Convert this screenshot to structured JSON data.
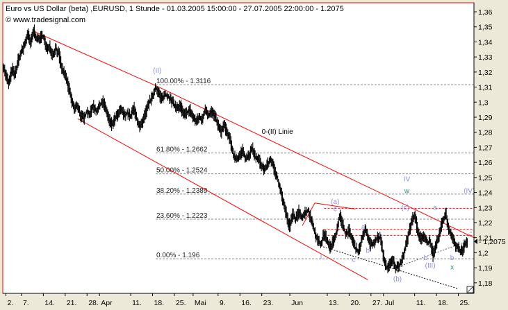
{
  "chart_data": {
    "type": "candlestick",
    "title": "Euro vs US Dollar (beta) ,EURUSD, 1 Stunde - 01.03.2005 15:00:00 - 27.07.2005 22:00:00 - 1.2075",
    "subtitle": "© www.tradesignal.com",
    "last_price": "1.2075",
    "last_price_label": "- 1,2075",
    "ylim": [
      1.173,
      1.366
    ],
    "y_ticks": [
      1.18,
      1.19,
      1.2,
      1.21,
      1.22,
      1.23,
      1.24,
      1.25,
      1.26,
      1.27,
      1.28,
      1.29,
      1.3,
      1.31,
      1.32,
      1.33,
      1.34,
      1.35,
      1.36
    ],
    "y_tick_labels": [
      "1,18",
      "1,19",
      "1,2",
      "1,21",
      "1,22",
      "1,23",
      "1,24",
      "1,25",
      "1,26",
      "1,27",
      "1,28",
      "1,29",
      "1,3",
      "1,31",
      "1,32",
      "1,33",
      "1,34",
      "1,35",
      "1,36"
    ],
    "x_ticks": [
      {
        "label": "2.",
        "day": 1
      },
      {
        "label": "7.",
        "day": 6
      },
      {
        "label": "14.",
        "day": 13
      },
      {
        "label": "21.",
        "day": 20
      },
      {
        "label": "28.",
        "day": 27
      },
      {
        "label": "Apr",
        "day": 31
      },
      {
        "label": "11.",
        "day": 41
      },
      {
        "label": "18.",
        "day": 48
      },
      {
        "label": "25.",
        "day": 55
      },
      {
        "label": "Mai",
        "day": 61
      },
      {
        "label": "9.",
        "day": 69
      },
      {
        "label": "16.",
        "day": 76
      },
      {
        "label": "23.",
        "day": 83
      },
      {
        "label": "Jun",
        "day": 92
      },
      {
        "label": "13.",
        "day": 104
      },
      {
        "label": "20.",
        "day": 111
      },
      {
        "label": "27.",
        "day": 118
      },
      {
        "label": "Jul",
        "day": 122
      },
      {
        "label": "11.",
        "day": 132
      },
      {
        "label": "18.",
        "day": 139
      },
      {
        "label": "25.",
        "day": 146
      }
    ],
    "x_range_days": [
      0,
      151
    ],
    "price_path": [
      [
        0,
        1.325
      ],
      [
        1,
        1.318
      ],
      [
        2,
        1.312
      ],
      [
        3,
        1.322
      ],
      [
        4,
        1.318
      ],
      [
        5,
        1.328
      ],
      [
        6,
        1.333
      ],
      [
        7,
        1.338
      ],
      [
        8,
        1.345
      ],
      [
        9,
        1.339
      ],
      [
        10,
        1.348
      ],
      [
        11,
        1.341
      ],
      [
        12,
        1.343
      ],
      [
        13,
        1.344
      ],
      [
        14,
        1.335
      ],
      [
        15,
        1.338
      ],
      [
        16,
        1.331
      ],
      [
        17,
        1.336
      ],
      [
        18,
        1.332
      ],
      [
        19,
        1.322
      ],
      [
        20,
        1.318
      ],
      [
        21,
        1.311
      ],
      [
        22,
        1.302
      ],
      [
        23,
        1.295
      ],
      [
        24,
        1.298
      ],
      [
        25,
        1.291
      ],
      [
        26,
        1.289
      ],
      [
        27,
        1.294
      ],
      [
        28,
        1.292
      ],
      [
        29,
        1.298
      ],
      [
        30,
        1.294
      ],
      [
        31,
        1.297
      ],
      [
        32,
        1.301
      ],
      [
        33,
        1.296
      ],
      [
        34,
        1.289
      ],
      [
        35,
        1.285
      ],
      [
        36,
        1.289
      ],
      [
        37,
        1.292
      ],
      [
        38,
        1.295
      ],
      [
        39,
        1.291
      ],
      [
        40,
        1.293
      ],
      [
        41,
        1.29
      ],
      [
        42,
        1.296
      ],
      [
        43,
        1.289
      ],
      [
        44,
        1.283
      ],
      [
        45,
        1.287
      ],
      [
        46,
        1.294
      ],
      [
        47,
        1.3
      ],
      [
        48,
        1.303
      ],
      [
        49,
        1.31
      ],
      [
        50,
        1.306
      ],
      [
        51,
        1.302
      ],
      [
        52,
        1.305
      ],
      [
        53,
        1.304
      ],
      [
        54,
        1.301
      ],
      [
        55,
        1.298
      ],
      [
        56,
        1.296
      ],
      [
        57,
        1.298
      ],
      [
        58,
        1.291
      ],
      [
        59,
        1.293
      ],
      [
        60,
        1.295
      ],
      [
        61,
        1.29
      ],
      [
        62,
        1.287
      ],
      [
        63,
        1.29
      ],
      [
        64,
        1.288
      ],
      [
        65,
        1.296
      ],
      [
        66,
        1.291
      ],
      [
        67,
        1.294
      ],
      [
        68,
        1.29
      ],
      [
        69,
        1.285
      ],
      [
        70,
        1.28
      ],
      [
        71,
        1.285
      ],
      [
        72,
        1.279
      ],
      [
        73,
        1.274
      ],
      [
        74,
        1.265
      ],
      [
        75,
        1.262
      ],
      [
        76,
        1.265
      ],
      [
        77,
        1.268
      ],
      [
        78,
        1.262
      ],
      [
        79,
        1.265
      ],
      [
        80,
        1.269
      ],
      [
        81,
        1.263
      ],
      [
        82,
        1.262
      ],
      [
        83,
        1.258
      ],
      [
        84,
        1.255
      ],
      [
        85,
        1.259
      ],
      [
        86,
        1.262
      ],
      [
        87,
        1.255
      ],
      [
        88,
        1.25
      ],
      [
        89,
        1.242
      ],
      [
        90,
        1.233
      ],
      [
        91,
        1.225
      ],
      [
        92,
        1.217
      ],
      [
        93,
        1.226
      ],
      [
        94,
        1.222
      ],
      [
        95,
        1.228
      ],
      [
        96,
        1.223
      ],
      [
        97,
        1.227
      ],
      [
        98,
        1.228
      ],
      [
        99,
        1.221
      ],
      [
        100,
        1.214
      ],
      [
        101,
        1.208
      ],
      [
        102,
        1.205
      ],
      [
        103,
        1.213
      ],
      [
        104,
        1.208
      ],
      [
        105,
        1.203
      ],
      [
        106,
        1.208
      ],
      [
        107,
        1.214
      ],
      [
        108,
        1.225
      ],
      [
        109,
        1.218
      ],
      [
        110,
        1.212
      ],
      [
        111,
        1.215
      ],
      [
        112,
        1.209
      ],
      [
        113,
        1.203
      ],
      [
        114,
        1.201
      ],
      [
        115,
        1.208
      ],
      [
        116,
        1.215
      ],
      [
        117,
        1.211
      ],
      [
        118,
        1.205
      ],
      [
        119,
        1.206
      ],
      [
        120,
        1.21
      ],
      [
        121,
        1.21
      ],
      [
        122,
        1.198
      ],
      [
        123,
        1.19
      ],
      [
        124,
        1.192
      ],
      [
        125,
        1.195
      ],
      [
        126,
        1.19
      ],
      [
        127,
        1.191
      ],
      [
        128,
        1.196
      ],
      [
        129,
        1.203
      ],
      [
        130,
        1.212
      ],
      [
        131,
        1.22
      ],
      [
        132,
        1.226
      ],
      [
        133,
        1.214
      ],
      [
        134,
        1.209
      ],
      [
        135,
        1.212
      ],
      [
        136,
        1.206
      ],
      [
        137,
        1.208
      ],
      [
        138,
        1.198
      ],
      [
        139,
        1.205
      ],
      [
        140,
        1.213
      ],
      [
        141,
        1.221
      ],
      [
        142,
        1.226
      ],
      [
        143,
        1.215
      ],
      [
        144,
        1.212
      ],
      [
        145,
        1.205
      ],
      [
        146,
        1.203
      ],
      [
        147,
        1.2
      ],
      [
        148,
        1.205
      ],
      [
        149,
        1.2075
      ]
    ],
    "fib_levels": [
      {
        "label": "100.00% - 1.3116",
        "price": 1.3116
      },
      {
        "label": "61.80% - 1.2662",
        "price": 1.2662
      },
      {
        "label": "50.00% - 1.2524",
        "price": 1.2524
      },
      {
        "label": "38.20% - 1.2389",
        "price": 1.2389
      },
      {
        "label": "23.60% - 1.2223",
        "price": 1.2223
      },
      {
        "label": "0.00% - 1.196",
        "price": 1.196
      }
    ],
    "horizontal_levels": [
      1.2295,
      1.2155,
      1.2115
    ],
    "trend_lines": [
      {
        "from": [
          10,
          1.347
        ],
        "to": [
          49,
          1.311
        ]
      },
      {
        "from": [
          49,
          1.311
        ],
        "to": [
          151,
          1.21
        ]
      },
      {
        "from": [
          24,
          1.289
        ],
        "to": [
          117,
          1.182
        ]
      },
      {
        "from": [
          100,
          1.233
        ],
        "to": [
          113,
          1.229
        ]
      },
      {
        "from": [
          100,
          1.233
        ],
        "to": [
          96,
          1.218
        ]
      }
    ],
    "dotted_lines": [
      {
        "from": [
          101,
          1.205
        ],
        "to": [
          146,
          1.176
        ],
        "color": "#000000"
      },
      {
        "from": [
          126,
          1.19
        ],
        "to": [
          148,
          1.207
        ],
        "color": "#555555"
      },
      {
        "from": [
          148,
          1.207
        ],
        "to": [
          160,
          1.215
        ],
        "color": "#999999"
      }
    ],
    "annotations": [
      {
        "text": "(II)",
        "day": 49.5,
        "price": 1.3195,
        "color": "#8a8fe0"
      },
      {
        "text": "0-(II) Linie",
        "day": 88,
        "price": 1.279,
        "color": "#000000"
      },
      {
        "text": "(a)",
        "day": 106.5,
        "price": 1.2325,
        "color": "#8a8fe0"
      },
      {
        "text": "c",
        "day": 106.5,
        "price": 1.2275,
        "color": "#8a8fe0"
      },
      {
        "text": "a",
        "day": 115.5,
        "price": 1.2155,
        "color": "#8a8fe0"
      },
      {
        "text": "b",
        "day": 117,
        "price": 1.2,
        "color": "#8a8fe0"
      },
      {
        "text": "c",
        "day": 112.5,
        "price": 1.194,
        "color": "#8a8fe0"
      },
      {
        "text": "I",
        "day": 102,
        "price": 1.196,
        "color": "#8a8fe0"
      },
      {
        "text": "(b)",
        "day": 126.5,
        "price": 1.181,
        "color": "#8a8fe0"
      },
      {
        "text": "IV",
        "day": 129.5,
        "price": 1.2475,
        "color": "#8a8fe0"
      },
      {
        "text": "w",
        "day": 129.5,
        "price": 1.2395,
        "color": "#2e8b7a"
      },
      {
        "text": "(c)",
        "day": 129,
        "price": 1.2285,
        "color": "#8a8fe0"
      },
      {
        "text": "a",
        "day": 138.5,
        "price": 1.2285,
        "color": "#8a8fe0"
      },
      {
        "text": "(IV)",
        "day": 149.5,
        "price": 1.2395,
        "color": "#8a8fe0"
      },
      {
        "text": "(III)",
        "day": 137,
        "price": 1.19,
        "color": "#8a8fe0"
      },
      {
        "text": "b",
        "day": 135.5,
        "price": 1.195,
        "color": "#8a8fe0"
      },
      {
        "text": "b",
        "day": 144,
        "price": 1.195,
        "color": "#8a8fe0"
      },
      {
        "text": "x",
        "day": 144,
        "price": 1.189,
        "color": "#2e8b7a"
      }
    ],
    "colors": {
      "plot_background": "#ffffff",
      "plot_border": "#ff0000",
      "price_bars": "#000000",
      "trend_lines": "#ff0000",
      "fib_lines": "#888888",
      "level_lines": "#ff0000",
      "price_marker": "#000000"
    }
  }
}
